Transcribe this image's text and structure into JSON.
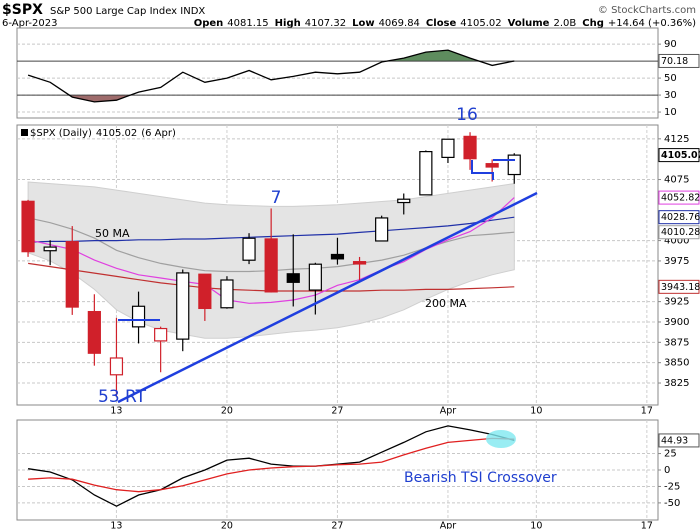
{
  "header": {
    "title": "$SPX",
    "subtitle": "S&P 500 Large Cap Index INDX",
    "date": "6-Apr-2023",
    "credit": "© StockCharts.com",
    "stats": [
      {
        "label": "Open",
        "value": 4081.15
      },
      {
        "label": "High",
        "value": 4107.32
      },
      {
        "label": "Low",
        "value": 4069.84
      },
      {
        "label": "Close",
        "value": 4105.02
      },
      {
        "label": "Volume",
        "value": "2.0B"
      },
      {
        "label": "Chg",
        "value": "+14.64 (+0.36%)"
      }
    ]
  },
  "annotations": [
    "16",
    "7",
    "53 RT",
    "50 MA",
    "200 MA",
    "Bearish TSI Crossover"
  ],
  "chart_data": [
    {
      "type": "line",
      "ylim": [
        3,
        109
      ],
      "yticks": [
        90,
        50,
        30,
        10
      ],
      "thresholds": [
        70,
        30
      ],
      "above_color": "#5e8c5e",
      "below_color": "#9e6b6b",
      "series": [
        {
          "color": "#000000",
          "show_last": true,
          "values": [
            53.5,
            45,
            27.6,
            22,
            24,
            33.5,
            39,
            57,
            45,
            50,
            59,
            48,
            52,
            57,
            55,
            57,
            69,
            73.5,
            80.6,
            83,
            73.5,
            65,
            70.18,
            null,
            null,
            null,
            null,
            null,
            null
          ]
        }
      ]
    },
    {
      "type": "candlestick",
      "label": "$SPX (Daily)",
      "label_date": "(6 Apr)",
      "up_color": "#000000",
      "down_color": "#d0202a",
      "categories": [
        null,
        null,
        null,
        null,
        "13",
        null,
        null,
        null,
        null,
        "20",
        null,
        null,
        null,
        null,
        "27",
        null,
        null,
        null,
        null,
        "Apr",
        null,
        null,
        null,
        "10",
        null,
        null,
        null,
        null,
        "17"
      ],
      "open": [
        4048.26,
        3987.55,
        3998.66,
        3912.77,
        3835.12,
        3894.01,
        3876.74,
        3878.93,
        3958.69,
        3917.47,
        3975.89,
        4002.04,
        3959.21,
        3939.21,
        3982.93,
        3974.13,
        3999.53,
        4046.74,
        4056.18,
        4102.2,
        4128.03,
        4094.5,
        4081.15,
        null,
        null,
        null,
        null,
        null,
        null
      ],
      "high": [
        4050,
        4000.41,
        4017.81,
        3934.05,
        3905.05,
        3937.29,
        3894.26,
        3964.46,
        3958.91,
        3956.22,
        4009.08,
        4039.49,
        4007.66,
        3972.74,
        4003.48,
        3979.89,
        4030.59,
        4057.85,
        4110.75,
        4121.47,
        4133.13,
        4099.69,
        4107.32,
        null,
        null,
        null,
        null,
        null,
        null
      ],
      "low": [
        3980,
        3969.76,
        3908.7,
        3846.32,
        3808.86,
        3873.64,
        3838.24,
        3864.11,
        3901.27,
        3916.32,
        3971.1,
        3936.17,
        3919.05,
        3909.16,
        3970.49,
        3951.53,
        3999.53,
        4032.1,
        4056.18,
        4095.28,
        4086.87,
        4072.55,
        4069.84,
        null,
        null,
        null,
        null,
        null,
        null
      ],
      "close": [
        3986.37,
        3992.01,
        3918.32,
        3861.59,
        3855.76,
        3919.29,
        3891.93,
        3960.28,
        3916.64,
        3951.57,
        4002.87,
        3936.97,
        3948.72,
        3970.99,
        3977.53,
        3971.27,
        4027.81,
        4050.83,
        4109.31,
        4124.51,
        4100.6,
        4090.38,
        4105.02,
        null,
        null,
        null,
        null,
        null,
        null
      ],
      "band": {
        "color": "#e4e4e4",
        "upper": [
          4072,
          4070,
          4068,
          4066,
          4062,
          4058,
          4054,
          4050,
          4046,
          4044,
          4043,
          4042,
          4042,
          4043,
          4044,
          4046,
          4048,
          4050,
          4054,
          4058,
          4062,
          4066,
          4070,
          null,
          null,
          null,
          null,
          null,
          null
        ],
        "lower": [
          3985,
          3975,
          3960,
          3940,
          3915,
          3900,
          3890,
          3885,
          3880,
          3880,
          3882,
          3885,
          3888,
          3890,
          3893,
          3898,
          3905,
          3915,
          3928,
          3940,
          3950,
          3958,
          3964.23,
          null,
          null,
          null,
          null,
          null,
          null
        ]
      },
      "series": [
        {
          "color": "#a0a0a0",
          "show_last": true,
          "values": [
            4028,
            4022,
            4014,
            4003,
            3988,
            3979,
            3972,
            3967,
            3963,
            3962,
            3962,
            3963,
            3965,
            3966,
            3968,
            3972,
            3976,
            3982,
            3991,
            3999,
            4006,
            4008,
            4010.28,
            null,
            null,
            null,
            null,
            null,
            null
          ]
        },
        {
          "color": "#c03030",
          "show_last": true,
          "values": [
            3972,
            3968,
            3964,
            3960,
            3956,
            3952,
            3948,
            3945,
            3942,
            3940,
            3939,
            3938,
            3938,
            3938,
            3938,
            3938,
            3939,
            3939,
            3940,
            3940,
            3941,
            3942,
            3943.18,
            null,
            null,
            null,
            null,
            null,
            null
          ]
        },
        {
          "color": "#2030a8",
          "show_last": true,
          "values": [
            3998,
            3999,
            3999,
            4000,
            4000,
            4001,
            4001,
            4002,
            4002,
            4003,
            4004,
            4005,
            4006,
            4007,
            4008,
            4010,
            4012,
            4014,
            4016,
            4018,
            4021,
            4025,
            4028.76,
            null,
            null,
            null,
            null,
            null,
            null
          ]
        },
        {
          "color": "#e040e0",
          "show_last": true,
          "values": [
            4001,
            3995,
            3989,
            3976,
            3966,
            3958,
            3954,
            3950,
            3946,
            3927,
            3923,
            3924,
            3927,
            3933,
            3945,
            3952,
            3964,
            3974,
            3989,
            4001,
            4011,
            4028,
            4052.82,
            null,
            null,
            null,
            null,
            null,
            null
          ]
        }
      ],
      "ylim": [
        3798,
        4142
      ],
      "yticks": [
        4125,
        4075,
        4000,
        3975,
        3925,
        3900,
        3875,
        3850,
        3825
      ],
      "grid": true
    },
    {
      "type": "line",
      "categories": [
        null,
        null,
        null,
        null,
        "13",
        null,
        null,
        null,
        null,
        "20",
        null,
        null,
        null,
        null,
        "27",
        null,
        null,
        null,
        null,
        "Apr",
        null,
        null,
        null,
        "10",
        null,
        null,
        null,
        null,
        "17"
      ],
      "ylim": [
        -76,
        76
      ],
      "yticks": [
        25,
        0,
        -25,
        -50
      ],
      "grid": true,
      "series": [
        {
          "color": "#000000",
          "show_last": true,
          "values": [
            2,
            -3,
            -15,
            -38,
            -55,
            -38,
            -30,
            -12,
            0,
            15,
            18,
            9,
            6,
            6,
            9,
            12,
            27,
            42,
            58,
            67,
            61,
            54,
            44.93,
            null,
            null,
            null,
            null,
            null,
            null
          ]
        },
        {
          "color": "#e02020",
          "show_last": false,
          "values": [
            -14,
            -12,
            -14,
            -23,
            -30,
            -33,
            -30,
            -24,
            -15,
            -6,
            0,
            3,
            5,
            6,
            8,
            9,
            12,
            23,
            33,
            42,
            45,
            48,
            47,
            null,
            null,
            null,
            null,
            null,
            null
          ]
        }
      ]
    }
  ]
}
